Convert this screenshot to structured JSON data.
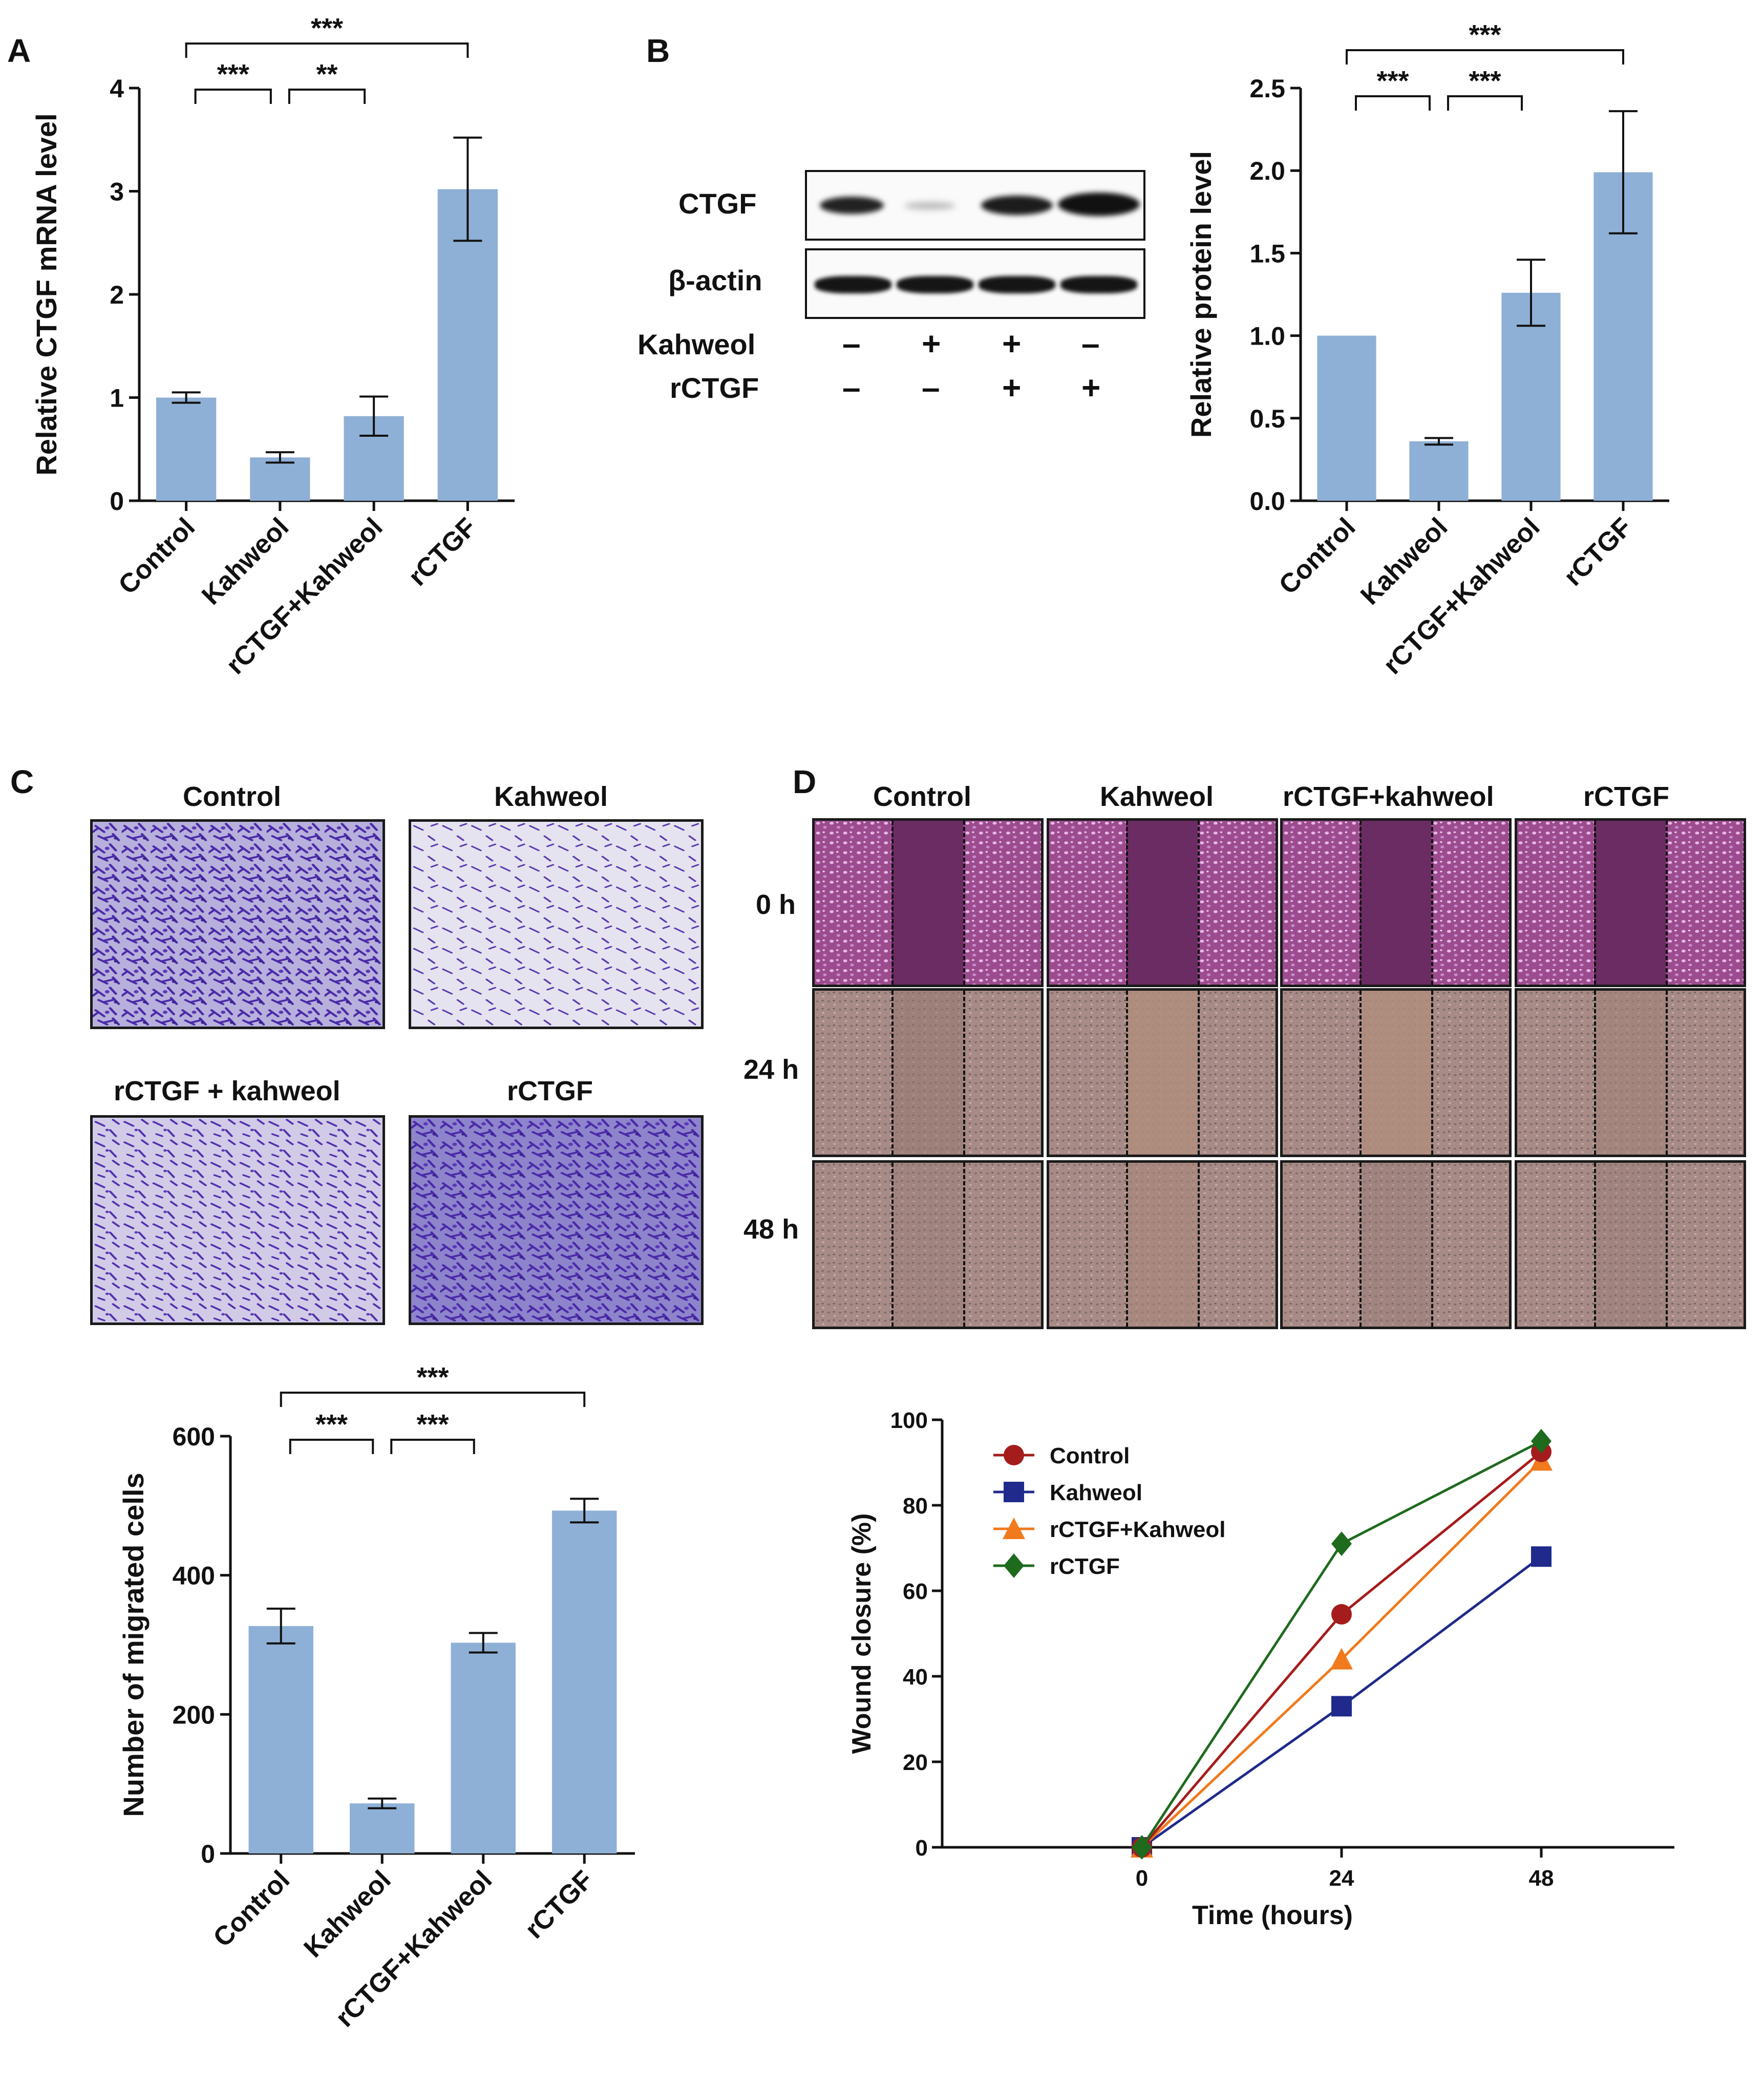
{
  "panel_labels": {
    "a": "A",
    "b": "B",
    "c": "C",
    "d": "D"
  },
  "western_blot": {
    "bands": [
      "CTGF",
      "β-actin"
    ],
    "row_labels": [
      "Kahweol",
      "rCTGF"
    ],
    "signs": [
      [
        "–",
        "+",
        "+",
        "–"
      ],
      [
        "–",
        "–",
        "+",
        "+"
      ]
    ]
  },
  "transwell": {
    "titles": [
      "Control",
      "Kahweol",
      "rCTGF + kahweol",
      "rCTGF"
    ]
  },
  "wound_images": {
    "columns": [
      "Control",
      "Kahweol",
      "rCTGF+kahweol",
      "rCTGF"
    ],
    "rows": [
      "0 h",
      "24 h",
      "48 h"
    ]
  },
  "colors": {
    "bar": "#8FB0D6",
    "control": "#A51C1C",
    "kahweol": "#1F2A8C",
    "rctgf_kahweol": "#F07A1C",
    "rctgf": "#1E6B1E",
    "stain": "#5A3AB0",
    "wound0": "#9C4C8E",
    "wound_late": "#A88A86"
  },
  "chart_data": [
    {
      "id": "A",
      "type": "bar",
      "categories": [
        "Control",
        "Kahweol",
        "rCTGF+Kahweol",
        "rCTGF"
      ],
      "values": [
        1.0,
        0.42,
        0.82,
        3.02
      ],
      "errors": [
        0.05,
        0.05,
        0.19,
        0.5
      ],
      "ylabel": "Relative CTGF mRNA level",
      "ylim": [
        0,
        4
      ],
      "yticks": [
        "0",
        "1",
        "2",
        "3",
        "4"
      ],
      "significance": [
        {
          "from": 0,
          "to": 1,
          "label": "***"
        },
        {
          "from": 1,
          "to": 2,
          "label": "**"
        },
        {
          "from": 0,
          "to": 3,
          "label": "***"
        }
      ]
    },
    {
      "id": "B",
      "type": "bar",
      "categories": [
        "Control",
        "Kahweol",
        "rCTGF+Kahweol",
        "rCTGF"
      ],
      "values": [
        1.0,
        0.36,
        1.26,
        1.99
      ],
      "errors": [
        0.0,
        0.02,
        0.2,
        0.37
      ],
      "ylabel": "Relative protein level",
      "ylim": [
        0,
        2.5
      ],
      "yticks": [
        "0.0",
        "0.5",
        "1.0",
        "1.5",
        "2.0",
        "2.5"
      ],
      "significance": [
        {
          "from": 0,
          "to": 1,
          "label": "***"
        },
        {
          "from": 1,
          "to": 2,
          "label": "***"
        },
        {
          "from": 0,
          "to": 3,
          "label": "***"
        }
      ]
    },
    {
      "id": "C",
      "type": "bar",
      "categories": [
        "Control",
        "Kahweol",
        "rCTGF+Kahweol",
        "rCTGF"
      ],
      "values": [
        327,
        72,
        303,
        493
      ],
      "errors": [
        25,
        7,
        14,
        17
      ],
      "ylabel": "Number of migrated cells",
      "ylim": [
        0,
        600
      ],
      "yticks": [
        "0",
        "200",
        "400",
        "600"
      ],
      "significance": [
        {
          "from": 0,
          "to": 1,
          "label": "***"
        },
        {
          "from": 1,
          "to": 2,
          "label": "***"
        },
        {
          "from": 0,
          "to": 3,
          "label": "***"
        }
      ]
    },
    {
      "id": "D",
      "type": "line",
      "x": [
        0,
        24,
        48
      ],
      "xticks": [
        "0",
        "24",
        "48"
      ],
      "xlim": [
        -24,
        64
      ],
      "xlabel": "Time (hours)",
      "ylabel": "Wound closure (%)",
      "ylim": [
        0,
        100
      ],
      "yticks": [
        "0",
        "20",
        "40",
        "60",
        "80",
        "100"
      ],
      "legend": "top-left",
      "series": [
        {
          "name": "Control",
          "values": [
            0,
            54.5,
            92.5
          ],
          "errors": [
            0,
            2,
            1
          ],
          "marker": "circle",
          "color": "#A51C1C"
        },
        {
          "name": "Kahweol",
          "values": [
            0,
            33,
            68
          ],
          "errors": [
            0,
            1,
            1
          ],
          "marker": "square",
          "color": "#1F2A8C"
        },
        {
          "name": "rCTGF+Kahweol",
          "values": [
            0,
            44,
            90.5
          ],
          "errors": [
            0,
            1.5,
            1
          ],
          "marker": "triangle",
          "color": "#F07A1C"
        },
        {
          "name": "rCTGF",
          "values": [
            0,
            71,
            95
          ],
          "errors": [
            0,
            1.5,
            0.5
          ],
          "marker": "diamond",
          "color": "#1E6B1E"
        }
      ]
    }
  ]
}
